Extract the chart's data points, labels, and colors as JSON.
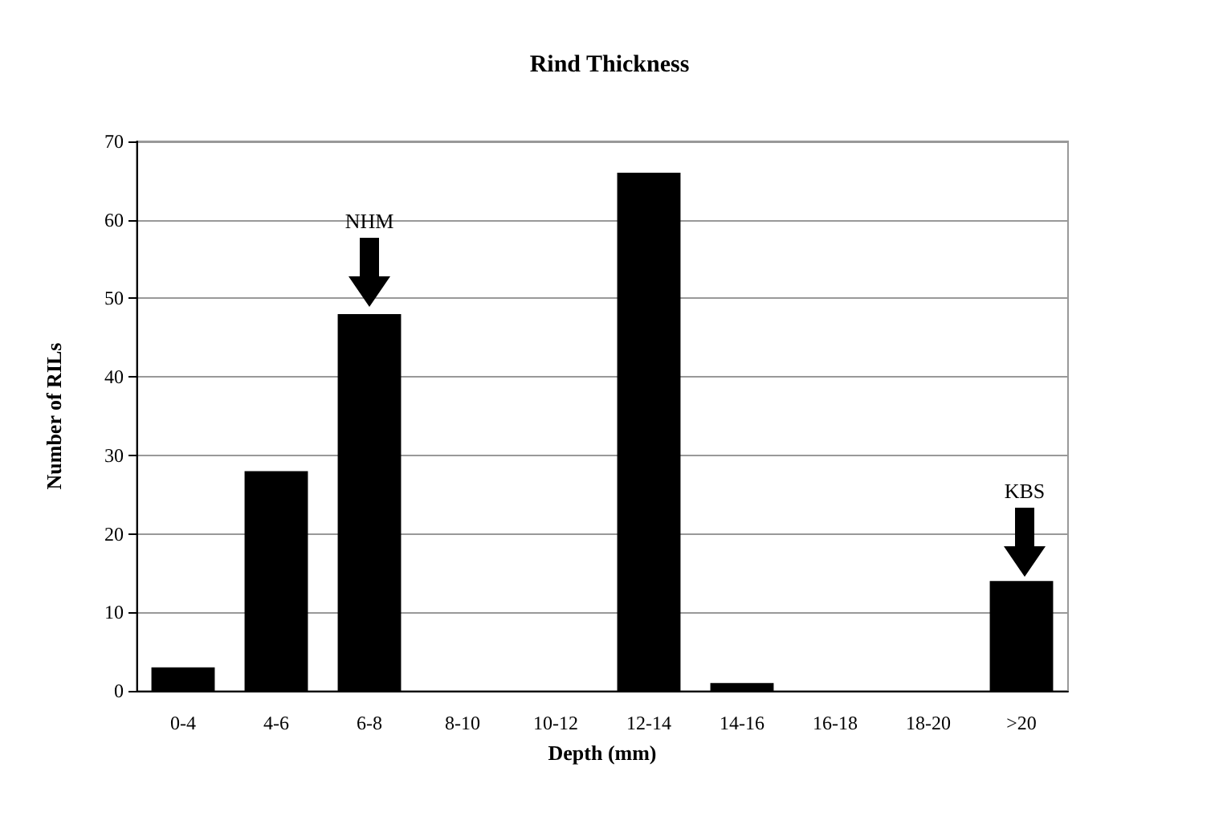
{
  "chart_data": {
    "type": "bar",
    "title": "Rind Thickness",
    "xlabel": "Depth (mm)",
    "ylabel": "Number of RILs",
    "categories": [
      "0-4",
      "4-6",
      "6-8",
      "8-10",
      "10-12",
      "12-14",
      "14-16",
      "16-18",
      "18-20",
      ">20"
    ],
    "values": [
      3,
      28,
      48,
      0,
      0,
      66,
      1,
      0,
      0,
      14
    ],
    "color": "#000000",
    "ylim": [
      0,
      70
    ],
    "yticks": [
      0,
      10,
      20,
      30,
      40,
      50,
      60,
      70
    ],
    "grid": "y",
    "annotations": [
      "NHM",
      "KBS"
    ]
  }
}
